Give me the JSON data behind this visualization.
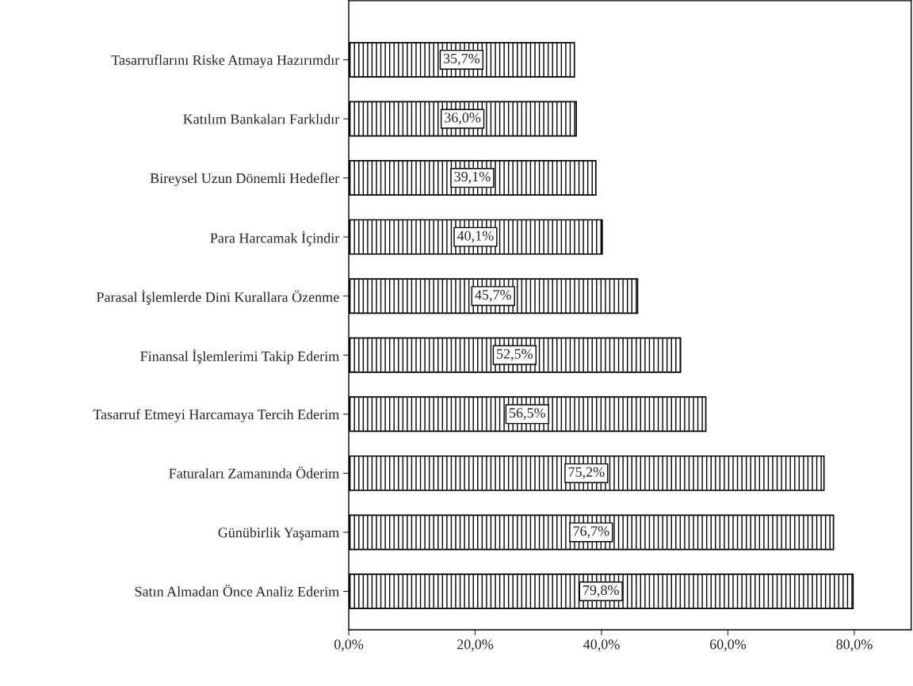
{
  "chart_data": {
    "type": "bar",
    "orientation": "horizontal",
    "categories": [
      "Tasarruflarını Riske Atmaya Hazırımdır",
      "Katılım Bankaları Farklıdır",
      "Bireysel Uzun Dönemli Hedefler",
      "Para Harcamak İçindir",
      "Parasal İşlemlerde Dini Kurallara Özenme",
      "Finansal İşlemlerimi Takip Ederim",
      "Tasarruf Etmeyi Harcamaya Tercih Ederim",
      "Faturaları Zamanında Öderim",
      "Günübirlik Yaşamam",
      "Satın Almadan Önce Analiz Ederim"
    ],
    "values": [
      35.7,
      36.0,
      39.1,
      40.1,
      45.7,
      52.5,
      56.5,
      75.2,
      76.7,
      79.8
    ],
    "value_labels": [
      "35,7%",
      "36,0%",
      "39,1%",
      "40,1%",
      "45,7%",
      "52,5%",
      "56,5%",
      "75,2%",
      "76,7%",
      "79,8%"
    ],
    "color": "#000000",
    "xlim": [
      0,
      89
    ],
    "xticks": [
      {
        "value": 0,
        "label": "0,0%"
      },
      {
        "value": 20,
        "label": "20,0%"
      },
      {
        "value": 40,
        "label": "40,0%"
      },
      {
        "value": 60,
        "label": "60,0%"
      },
      {
        "value": 80,
        "label": "80,0%"
      }
    ],
    "grid": false,
    "legend": false
  }
}
